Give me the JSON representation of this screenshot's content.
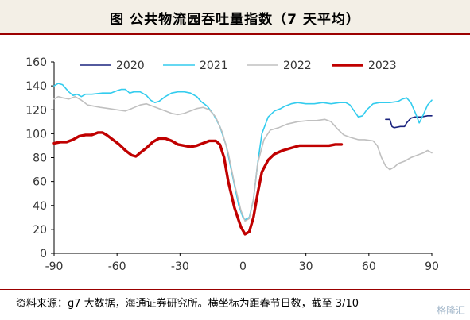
{
  "title": "图  公共物流园吞吐量指数（7 天平均）",
  "source": "资料来源：g7 大数据，海通证券研究所。横坐标为距春节日数，截至 3/10",
  "watermark": "格隆汇",
  "colors": {
    "frame_accent": "#9b0000",
    "axis": "#000000"
  },
  "chart_data": {
    "type": "line",
    "title": "公共物流园吞吐量指数（7 天平均）",
    "xlabel": "",
    "ylabel": "",
    "xlim": [
      -90,
      90
    ],
    "ylim": [
      0,
      160
    ],
    "x_ticks": [
      -90,
      -60,
      -30,
      0,
      30,
      60,
      90
    ],
    "y_ticks": [
      0,
      20,
      40,
      60,
      80,
      100,
      120,
      140,
      160
    ],
    "grid": false,
    "legend_position": "top",
    "series": [
      {
        "name": "2020",
        "color": "#1a237e",
        "width": 1.6,
        "points": [
          [
            68,
            112
          ],
          [
            70,
            112
          ],
          [
            71,
            106
          ],
          [
            72,
            105
          ],
          [
            75,
            106
          ],
          [
            77,
            106
          ],
          [
            78,
            109
          ],
          [
            80,
            113
          ],
          [
            82,
            114
          ],
          [
            85,
            114
          ],
          [
            88,
            115
          ],
          [
            90,
            115
          ]
        ]
      },
      {
        "name": "2021",
        "color": "#33ccee",
        "width": 1.6,
        "points": [
          [
            -90,
            140
          ],
          [
            -88,
            142
          ],
          [
            -86,
            141
          ],
          [
            -83,
            135
          ],
          [
            -81,
            132
          ],
          [
            -79,
            133
          ],
          [
            -77,
            131
          ],
          [
            -75,
            133
          ],
          [
            -72,
            133
          ],
          [
            -67,
            134
          ],
          [
            -63,
            134
          ],
          [
            -60,
            136
          ],
          [
            -58,
            137
          ],
          [
            -56,
            137
          ],
          [
            -54,
            134
          ],
          [
            -52,
            135
          ],
          [
            -49,
            135
          ],
          [
            -46,
            132
          ],
          [
            -44,
            128
          ],
          [
            -42,
            126
          ],
          [
            -40,
            127
          ],
          [
            -37,
            131
          ],
          [
            -34,
            134
          ],
          [
            -31,
            135
          ],
          [
            -28,
            135
          ],
          [
            -25,
            134
          ],
          [
            -22,
            131
          ],
          [
            -20,
            127
          ],
          [
            -17,
            123
          ],
          [
            -14,
            116
          ],
          [
            -11,
            106
          ],
          [
            -8,
            90
          ],
          [
            -5,
            65
          ],
          [
            -2,
            40
          ],
          [
            0,
            30
          ],
          [
            1,
            28
          ],
          [
            3,
            30
          ],
          [
            5,
            45
          ],
          [
            7,
            75
          ],
          [
            9,
            100
          ],
          [
            12,
            114
          ],
          [
            15,
            119
          ],
          [
            18,
            121
          ],
          [
            20,
            123
          ],
          [
            23,
            125
          ],
          [
            26,
            126
          ],
          [
            30,
            125
          ],
          [
            34,
            125
          ],
          [
            38,
            126
          ],
          [
            42,
            125
          ],
          [
            46,
            126
          ],
          [
            49,
            126
          ],
          [
            51,
            124
          ],
          [
            53,
            119
          ],
          [
            55,
            114
          ],
          [
            57,
            115
          ],
          [
            59,
            120
          ],
          [
            62,
            125
          ],
          [
            65,
            126
          ],
          [
            70,
            126
          ],
          [
            74,
            127
          ],
          [
            76,
            129
          ],
          [
            78,
            130
          ],
          [
            80,
            126
          ],
          [
            82,
            118
          ],
          [
            84,
            109
          ],
          [
            86,
            116
          ],
          [
            88,
            124
          ],
          [
            90,
            128
          ]
        ]
      },
      {
        "name": "2022",
        "color": "#c0c0c0",
        "width": 1.6,
        "points": [
          [
            -90,
            129
          ],
          [
            -88,
            131
          ],
          [
            -86,
            130
          ],
          [
            -83,
            129
          ],
          [
            -80,
            131
          ],
          [
            -77,
            128
          ],
          [
            -74,
            124
          ],
          [
            -71,
            123
          ],
          [
            -68,
            122
          ],
          [
            -64,
            121
          ],
          [
            -60,
            120
          ],
          [
            -56,
            119
          ],
          [
            -53,
            121
          ],
          [
            -49,
            124
          ],
          [
            -46,
            125
          ],
          [
            -43,
            123
          ],
          [
            -40,
            121
          ],
          [
            -37,
            119
          ],
          [
            -34,
            117
          ],
          [
            -31,
            116
          ],
          [
            -28,
            117
          ],
          [
            -25,
            119
          ],
          [
            -22,
            121
          ],
          [
            -19,
            122
          ],
          [
            -16,
            120
          ],
          [
            -13,
            114
          ],
          [
            -10,
            102
          ],
          [
            -7,
            84
          ],
          [
            -4,
            58
          ],
          [
            -1,
            36
          ],
          [
            1,
            27
          ],
          [
            3,
            29
          ],
          [
            5,
            45
          ],
          [
            7,
            75
          ],
          [
            10,
            95
          ],
          [
            13,
            103
          ],
          [
            17,
            105
          ],
          [
            21,
            108
          ],
          [
            26,
            110
          ],
          [
            31,
            111
          ],
          [
            35,
            111
          ],
          [
            39,
            112
          ],
          [
            42,
            110
          ],
          [
            45,
            104
          ],
          [
            48,
            99
          ],
          [
            51,
            97
          ],
          [
            55,
            95
          ],
          [
            58,
            95
          ],
          [
            62,
            94
          ],
          [
            64,
            90
          ],
          [
            66,
            80
          ],
          [
            68,
            73
          ],
          [
            70,
            70
          ],
          [
            72,
            72
          ],
          [
            74,
            75
          ],
          [
            77,
            77
          ],
          [
            80,
            80
          ],
          [
            83,
            82
          ],
          [
            86,
            84
          ],
          [
            88,
            86
          ],
          [
            90,
            84
          ]
        ]
      },
      {
        "name": "2023",
        "color": "#c00000",
        "width": 3.4,
        "points": [
          [
            -90,
            92
          ],
          [
            -87,
            93
          ],
          [
            -84,
            93
          ],
          [
            -81,
            95
          ],
          [
            -78,
            98
          ],
          [
            -75,
            99
          ],
          [
            -72,
            99
          ],
          [
            -69,
            101
          ],
          [
            -67,
            101
          ],
          [
            -65,
            99
          ],
          [
            -62,
            95
          ],
          [
            -59,
            91
          ],
          [
            -56,
            86
          ],
          [
            -53,
            82
          ],
          [
            -51,
            81
          ],
          [
            -49,
            84
          ],
          [
            -46,
            88
          ],
          [
            -43,
            93
          ],
          [
            -40,
            96
          ],
          [
            -37,
            96
          ],
          [
            -34,
            94
          ],
          [
            -31,
            91
          ],
          [
            -28,
            90
          ],
          [
            -25,
            89
          ],
          [
            -22,
            90
          ],
          [
            -19,
            92
          ],
          [
            -16,
            94
          ],
          [
            -13,
            94
          ],
          [
            -11,
            91
          ],
          [
            -9,
            80
          ],
          [
            -7,
            60
          ],
          [
            -4,
            38
          ],
          [
            -1,
            22
          ],
          [
            1,
            16
          ],
          [
            3,
            18
          ],
          [
            5,
            30
          ],
          [
            7,
            50
          ],
          [
            9,
            68
          ],
          [
            12,
            78
          ],
          [
            15,
            83
          ],
          [
            19,
            86
          ],
          [
            23,
            88
          ],
          [
            27,
            90
          ],
          [
            31,
            90
          ],
          [
            35,
            90
          ],
          [
            38,
            90
          ],
          [
            41,
            90
          ],
          [
            44,
            91
          ],
          [
            47,
            91
          ]
        ]
      }
    ]
  }
}
